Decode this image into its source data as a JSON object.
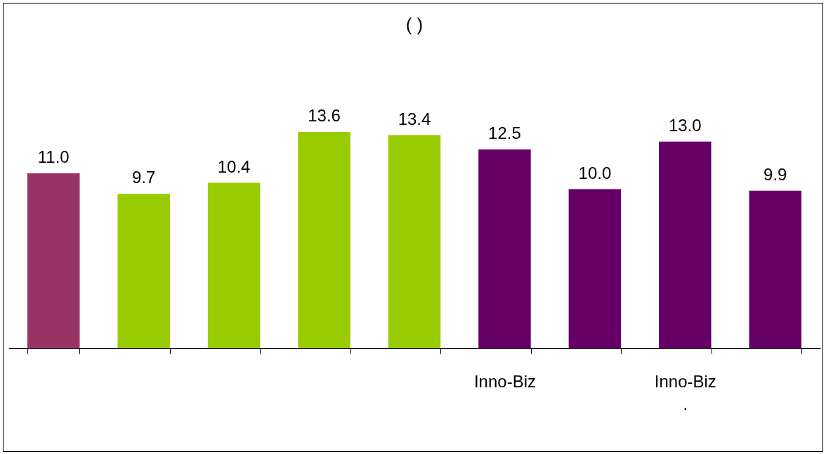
{
  "chart_data": {
    "type": "bar",
    "title": "( )",
    "categories": [
      null,
      null,
      null,
      null,
      null,
      "Inno-Biz",
      null,
      "Inno-Biz\n.",
      null
    ],
    "values": [
      11.0,
      9.7,
      10.4,
      13.6,
      13.4,
      12.5,
      10.0,
      13.0,
      9.9
    ],
    "value_labels": [
      "11.0",
      "9.7",
      "10.4",
      "13.6",
      "13.4",
      "12.5",
      "10.0",
      "13.0",
      "9.9"
    ],
    "colors": [
      "#993366",
      "#99cc00",
      "#99cc00",
      "#99cc00",
      "#99cc00",
      "#660066",
      "#660066",
      "#660066",
      "#660066"
    ]
  }
}
